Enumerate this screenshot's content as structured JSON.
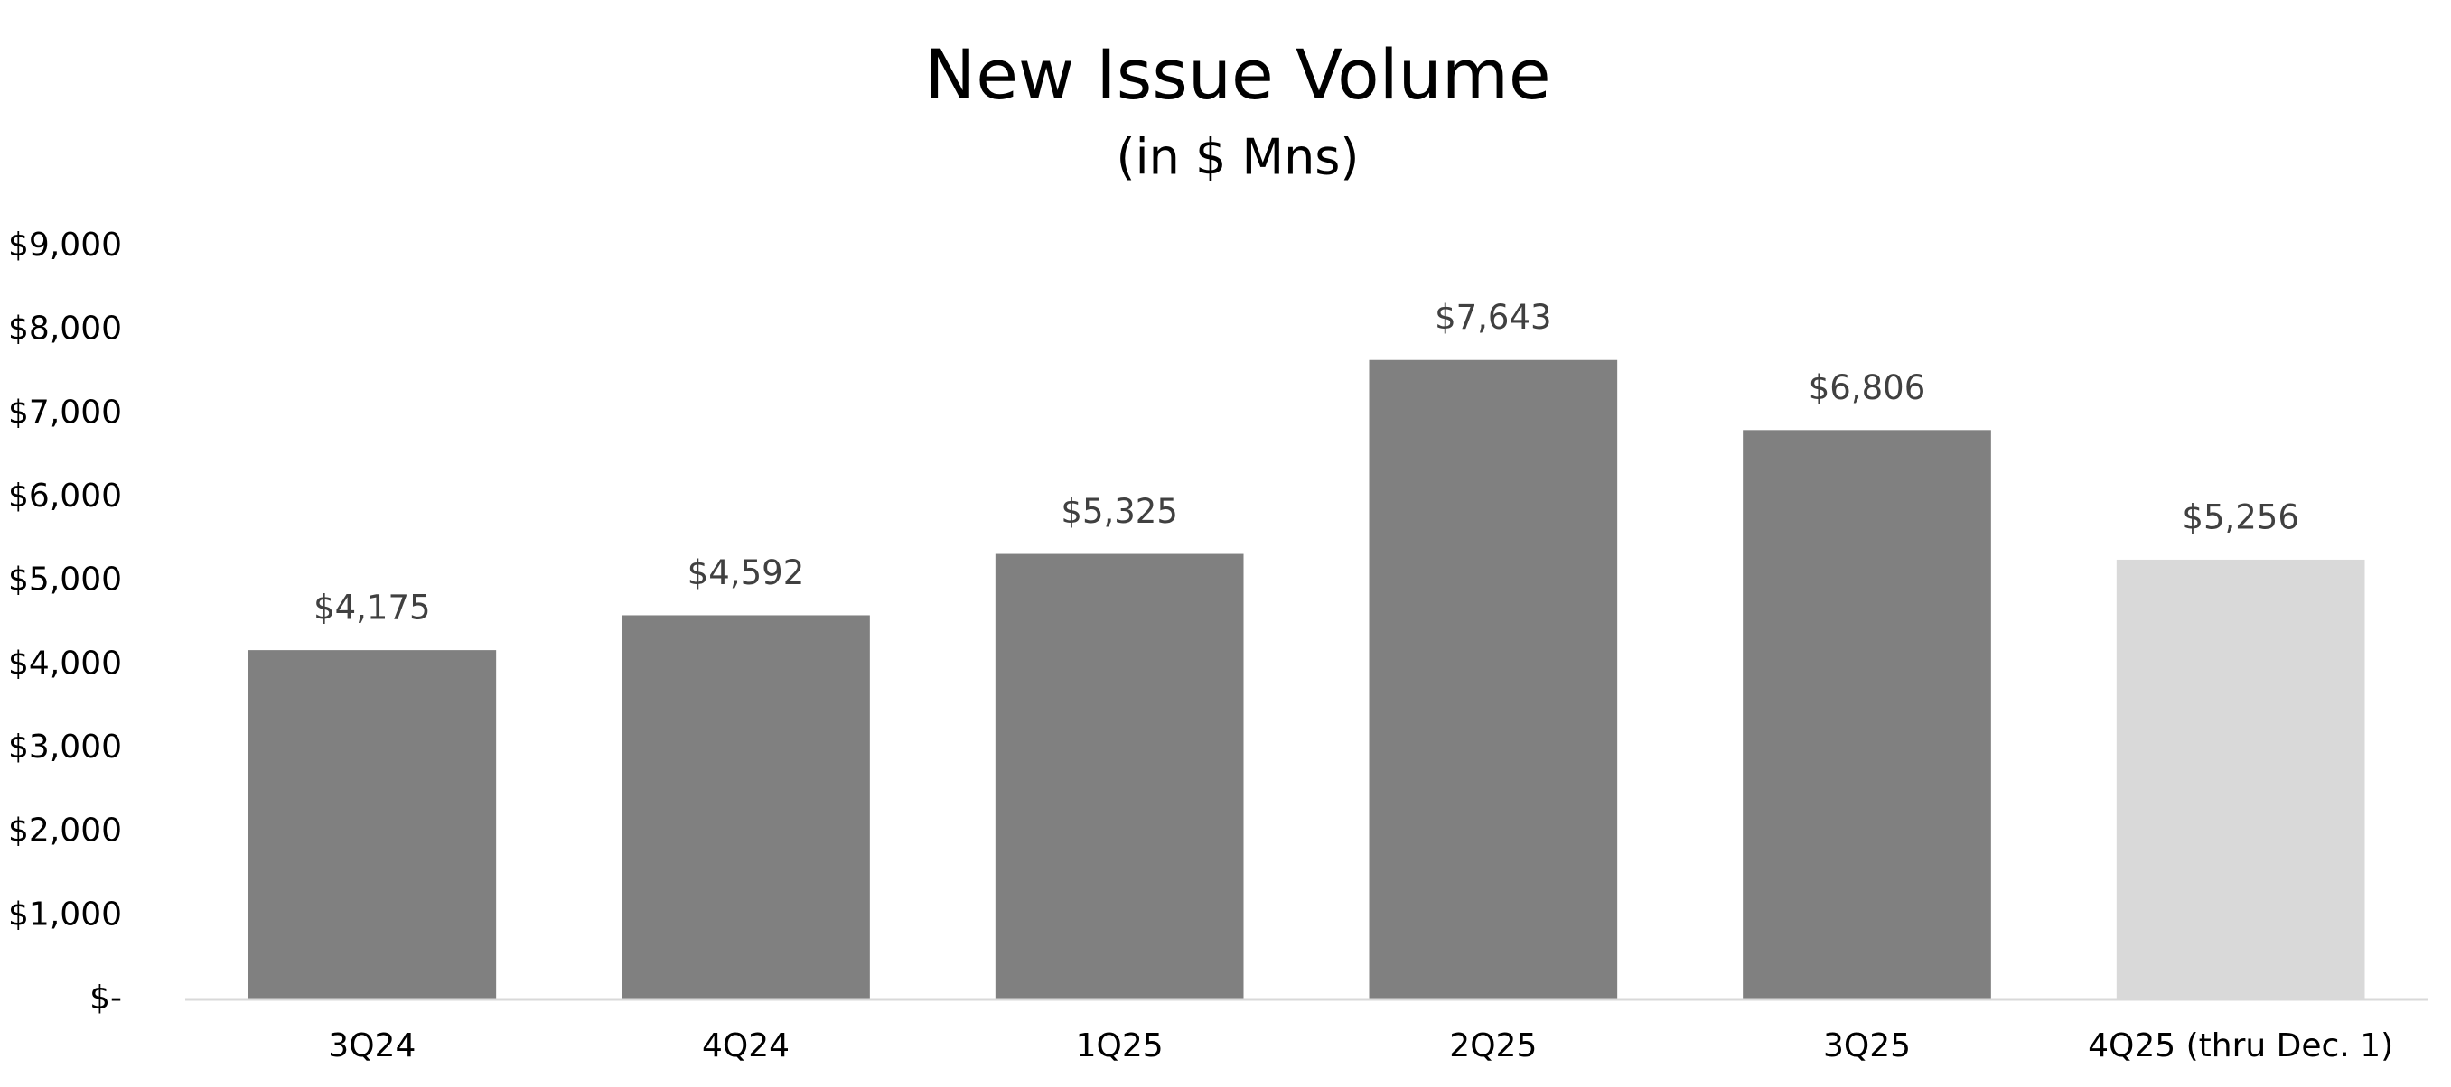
{
  "chart_data": {
    "type": "bar",
    "title": "New Issue Volume",
    "subtitle": "(in $ Mns)",
    "categories": [
      "3Q24",
      "4Q24",
      "1Q25",
      "2Q25",
      "3Q25",
      "4Q25 (thru Dec. 1)"
    ],
    "values": [
      4175,
      4592,
      5325,
      7643,
      6806,
      5256
    ],
    "value_labels": [
      "$4,175",
      "$4,592",
      "$5,325",
      "$7,643",
      "$6,806",
      "$5,256"
    ],
    "colors": [
      "#808080",
      "#808080",
      "#808080",
      "#808080",
      "#808080",
      "#d9d9d9"
    ],
    "ylim": [
      0,
      9000
    ],
    "yticks": [
      {
        "value": 0,
        "label": "$-"
      },
      {
        "value": 1000,
        "label": "$1,000"
      },
      {
        "value": 2000,
        "label": "$2,000"
      },
      {
        "value": 3000,
        "label": "$3,000"
      },
      {
        "value": 4000,
        "label": "$4,000"
      },
      {
        "value": 5000,
        "label": "$5,000"
      },
      {
        "value": 6000,
        "label": "$6,000"
      },
      {
        "value": 7000,
        "label": "$7,000"
      },
      {
        "value": 8000,
        "label": "$8,000"
      },
      {
        "value": 9000,
        "label": "$9,000"
      }
    ],
    "grid": false
  }
}
